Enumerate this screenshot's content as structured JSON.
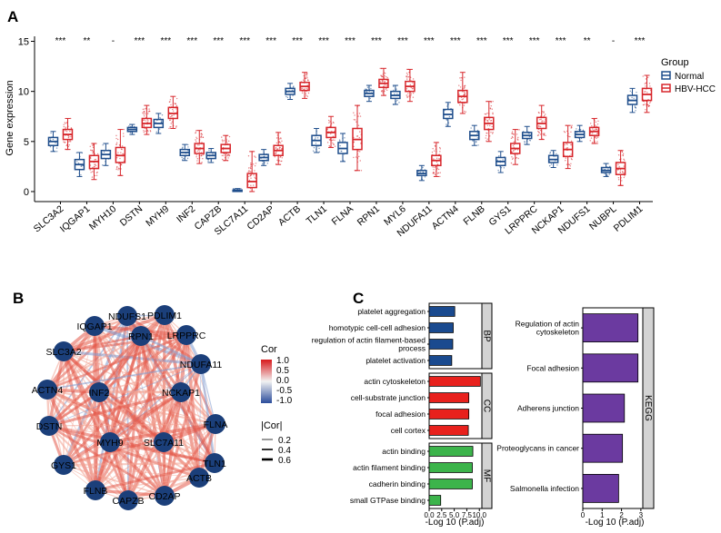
{
  "panels": {
    "a": "A",
    "b": "B",
    "c": "C"
  },
  "colors": {
    "normal": "#1f4e8c",
    "hcc": "#d7262b",
    "bp": "#1a4a8f",
    "cc": "#e8211d",
    "mf": "#3cb44b",
    "kegg": "#6b3aa0"
  },
  "chart_data": [
    {
      "type": "box",
      "panel": "A",
      "ylabel": "Gene expression",
      "ylim": [
        -1,
        15.5
      ],
      "yticks": [
        0,
        5,
        10,
        15
      ],
      "legend": {
        "title": "Group",
        "placement": "right",
        "entries": [
          "Normal",
          "HBV-HCC"
        ]
      },
      "categories": [
        "SLC3A2",
        "IQGAP1",
        "MYH10",
        "DSTN",
        "MYH9",
        "INF2",
        "CAPZB",
        "SLC7A11",
        "CD2AP",
        "ACTB",
        "TLN1",
        "FLNA",
        "RPN1",
        "MYL6",
        "NDUFA11",
        "ACTN4",
        "FLNB",
        "GYS1",
        "LRPPRC",
        "NCKAP1",
        "NDUFS1",
        "NUBPL",
        "PDLIM1"
      ],
      "significance": [
        "***",
        "**",
        "-",
        "***",
        "***",
        "***",
        "***",
        "***",
        "***",
        "***",
        "***",
        "***",
        "***",
        "***",
        "***",
        "***",
        "***",
        "***",
        "***",
        "***",
        "**",
        "-",
        "***"
      ],
      "series": [
        {
          "name": "Normal",
          "median": [
            5.0,
            2.7,
            3.7,
            6.2,
            6.8,
            3.9,
            3.6,
            0.1,
            3.4,
            10.0,
            5.1,
            4.3,
            9.8,
            9.6,
            1.8,
            7.7,
            5.6,
            3.0,
            5.6,
            3.2,
            5.7,
            2.1,
            9.1
          ],
          "q1": [
            4.6,
            2.2,
            3.3,
            6.0,
            6.4,
            3.6,
            3.3,
            0.05,
            3.1,
            9.7,
            4.6,
            3.8,
            9.5,
            9.3,
            1.6,
            7.3,
            5.2,
            2.6,
            5.3,
            2.9,
            5.4,
            1.9,
            8.7
          ],
          "q3": [
            5.4,
            3.2,
            4.1,
            6.4,
            7.2,
            4.2,
            3.9,
            0.15,
            3.7,
            10.3,
            5.6,
            4.9,
            10.1,
            10.0,
            2.1,
            8.2,
            6.0,
            3.4,
            5.9,
            3.6,
            6.0,
            2.4,
            9.6
          ],
          "min": [
            4.0,
            1.5,
            2.6,
            5.7,
            5.8,
            3.1,
            2.9,
            0.0,
            2.6,
            9.2,
            3.9,
            3.0,
            9.0,
            8.7,
            1.1,
            6.5,
            4.6,
            1.9,
            4.7,
            2.4,
            5.0,
            1.5,
            7.9
          ],
          "max": [
            6.0,
            3.9,
            4.8,
            6.7,
            7.8,
            4.7,
            4.3,
            0.3,
            4.2,
            10.8,
            6.3,
            5.8,
            10.6,
            10.6,
            2.6,
            8.9,
            6.6,
            4.0,
            6.5,
            4.1,
            6.6,
            2.8,
            10.3
          ]
        },
        {
          "name": "HBV-HCC",
          "median": [
            5.7,
            3.0,
            3.6,
            6.8,
            7.8,
            4.3,
            4.3,
            1.0,
            4.1,
            10.5,
            5.9,
            5.2,
            10.8,
            10.5,
            3.1,
            9.5,
            6.8,
            4.3,
            6.8,
            4.2,
            6.0,
            2.3,
            9.7
          ],
          "q1": [
            5.2,
            2.3,
            2.9,
            6.4,
            7.3,
            3.8,
            3.9,
            0.4,
            3.6,
            10.1,
            5.4,
            4.2,
            10.4,
            10.0,
            2.6,
            8.9,
            6.2,
            3.8,
            6.3,
            3.5,
            5.6,
            1.7,
            9.1
          ],
          "q3": [
            6.2,
            3.6,
            4.4,
            7.3,
            8.4,
            4.8,
            4.7,
            1.8,
            4.6,
            10.9,
            6.4,
            6.3,
            11.2,
            11.0,
            3.6,
            10.1,
            7.4,
            4.8,
            7.4,
            4.9,
            6.4,
            2.9,
            10.3
          ],
          "min": [
            4.2,
            1.2,
            1.6,
            5.7,
            6.3,
            2.8,
            3.1,
            0.0,
            2.7,
            9.3,
            4.4,
            2.1,
            9.6,
            9.0,
            1.5,
            7.8,
            5.0,
            2.7,
            5.2,
            2.3,
            4.8,
            0.6,
            7.9
          ],
          "max": [
            7.3,
            4.8,
            6.2,
            8.6,
            9.5,
            6.1,
            5.6,
            4.0,
            5.9,
            11.9,
            7.5,
            8.6,
            12.3,
            12.2,
            4.9,
            11.9,
            9.0,
            6.2,
            8.6,
            6.6,
            7.3,
            4.1,
            11.6
          ]
        }
      ]
    },
    {
      "type": "network",
      "panel": "B",
      "nodes": [
        "NDUFS1",
        "PDLIM1",
        "IQGAP1",
        "LRPPRC",
        "SLC3A2",
        "RPN1",
        "NDUFA11",
        "ACTN4",
        "INF2",
        "NCKAP1",
        "FLNA",
        "DSTN",
        "MYH9",
        "SLC7A11",
        "TLN1",
        "GYS1",
        "ACTB",
        "FLNB",
        "CAPZB",
        "CD2AP"
      ],
      "legend": {
        "cor_title": "Cor",
        "cor_ticks": [
          "1.0",
          "0.5",
          "0.0",
          "-0.5",
          "-1.0"
        ],
        "abs_title": "|Cor|",
        "abs_ticks": [
          "0.2",
          "0.4",
          "0.6"
        ]
      }
    },
    {
      "type": "bar",
      "panel": "C",
      "xlabel": "-Log 10 (P.adj)",
      "groups": [
        {
          "name": "BP",
          "categories": [
            "platelet aggregation",
            "homotypic cell-cell adhesion",
            "regulation of actin filament-based process",
            "platelet activation"
          ],
          "values": [
            5.1,
            4.8,
            4.7,
            4.5
          ]
        },
        {
          "name": "CC",
          "categories": [
            "actin cytoskeleton",
            "cell-substrate junction",
            "focal adhesion",
            "cell cortex"
          ],
          "values": [
            10.2,
            7.9,
            7.9,
            7.8
          ]
        },
        {
          "name": "MF",
          "categories": [
            "actin binding",
            "actin filament binding",
            "cadherin binding",
            "small GTPase binding"
          ],
          "values": [
            8.7,
            8.6,
            8.6,
            2.3
          ]
        }
      ],
      "xticks": [
        "0.0",
        "2.5",
        "5.0",
        "7.5",
        "10.0"
      ],
      "xlim": [
        0,
        10.5
      ]
    },
    {
      "type": "bar",
      "panel": "C",
      "xlabel": "-Log 10 (P.adj)",
      "groups": [
        {
          "name": "KEGG",
          "categories": [
            "Regulation of actin cytoskeleton",
            "Focal adhesion",
            "Adherens junction",
            "Proteoglycans in cancer",
            "Salmonella infection"
          ],
          "values": [
            2.85,
            2.85,
            2.15,
            2.05,
            1.85
          ]
        }
      ],
      "xticks": [
        "0",
        "1",
        "2",
        "3"
      ],
      "xlim": [
        0,
        3.1
      ]
    }
  ]
}
